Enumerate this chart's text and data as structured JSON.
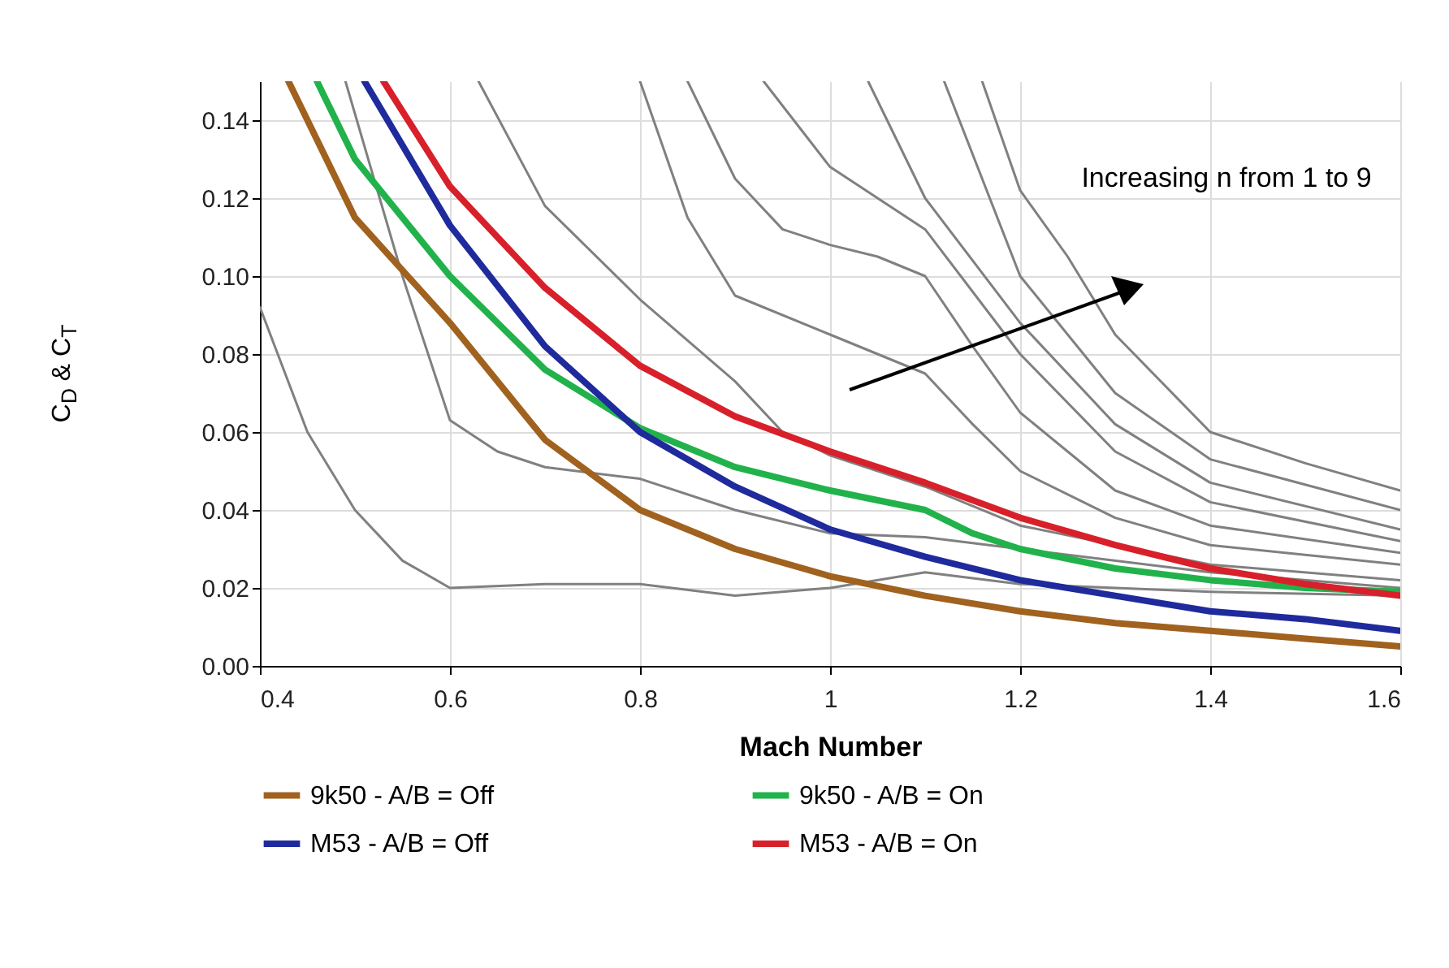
{
  "chart_data": {
    "type": "line",
    "xlabel": "Mach Number",
    "ylabel": "C$_{D}$ & C$_{T}$",
    "xlim": [
      0.4,
      1.6
    ],
    "xticks": [
      0.4,
      0.6,
      0.8,
      1,
      1.2,
      1.4,
      1.6
    ],
    "ylim": [
      0,
      0.15
    ],
    "yticks": [
      {
        "value": 0,
        "label": "0.00"
      },
      {
        "value": 0.02,
        "label": "0.02"
      },
      {
        "value": 0.04,
        "label": "0.04"
      },
      {
        "value": 0.06,
        "label": "0.06"
      },
      {
        "value": 0.08,
        "label": "0.08"
      },
      {
        "value": 0.1,
        "label": "0.10"
      },
      {
        "value": 0.12,
        "label": "0.12"
      },
      {
        "value": 0.14,
        "label": "0.14"
      }
    ],
    "grid": true,
    "legend": "bottom",
    "annotations": [
      "Increasing n from 1 to 9"
    ],
    "series": [
      {
        "color": "#808080",
        "x": [
          0.4,
          0.45,
          0.5,
          0.55,
          0.6,
          0.7,
          0.8,
          0.9,
          1.0,
          1.1,
          1.2,
          1.4,
          1.6
        ],
        "values": [
          0.092,
          0.06,
          0.04,
          0.027,
          0.02,
          0.021,
          0.021,
          0.018,
          0.02,
          0.024,
          0.021,
          0.019,
          0.018
        ]
      },
      {
        "color": "#808080",
        "x": [
          0.49,
          0.55,
          0.6,
          0.65,
          0.7,
          0.8,
          0.9,
          1.0,
          1.1,
          1.2,
          1.4,
          1.6
        ],
        "values": [
          0.15,
          0.1,
          0.063,
          0.055,
          0.051,
          0.048,
          0.04,
          0.034,
          0.033,
          0.03,
          0.024,
          0.02
        ]
      },
      {
        "color": "#808080",
        "x": [
          0.63,
          0.7,
          0.8,
          0.9,
          0.95,
          1.0,
          1.1,
          1.2,
          1.4,
          1.6
        ],
        "values": [
          0.15,
          0.118,
          0.094,
          0.073,
          0.06,
          0.054,
          0.046,
          0.036,
          0.026,
          0.022
        ]
      },
      {
        "color": "#808080",
        "x": [
          0.8,
          0.85,
          0.9,
          1.0,
          1.05,
          1.1,
          1.15,
          1.2,
          1.3,
          1.4,
          1.6
        ],
        "values": [
          0.15,
          0.115,
          0.095,
          0.085,
          0.08,
          0.075,
          0.062,
          0.05,
          0.038,
          0.031,
          0.026
        ]
      },
      {
        "color": "#808080",
        "x": [
          0.85,
          0.9,
          0.95,
          1.0,
          1.05,
          1.1,
          1.15,
          1.2,
          1.3,
          1.4,
          1.6
        ],
        "values": [
          0.15,
          0.125,
          0.112,
          0.108,
          0.105,
          0.1,
          0.082,
          0.065,
          0.045,
          0.036,
          0.029
        ]
      },
      {
        "color": "#808080",
        "x": [
          0.93,
          1.0,
          1.05,
          1.1,
          1.2,
          1.3,
          1.4,
          1.6
        ],
        "values": [
          0.15,
          0.128,
          0.12,
          0.112,
          0.08,
          0.055,
          0.042,
          0.032
        ]
      },
      {
        "color": "#808080",
        "x": [
          1.04,
          1.1,
          1.2,
          1.3,
          1.4,
          1.6
        ],
        "values": [
          0.15,
          0.12,
          0.088,
          0.062,
          0.047,
          0.035
        ]
      },
      {
        "color": "#808080",
        "x": [
          1.12,
          1.2,
          1.3,
          1.4,
          1.6
        ],
        "values": [
          0.15,
          0.1,
          0.07,
          0.053,
          0.04
        ]
      },
      {
        "color": "#808080",
        "x": [
          1.16,
          1.2,
          1.25,
          1.3,
          1.4,
          1.5,
          1.6
        ],
        "values": [
          0.15,
          0.122,
          0.105,
          0.085,
          0.06,
          0.052,
          0.045
        ]
      },
      {
        "name": "9k50 - A/B = Off",
        "color": "#a0621e",
        "x": [
          0.43,
          0.5,
          0.6,
          0.7,
          0.8,
          0.9,
          1.0,
          1.1,
          1.2,
          1.3,
          1.4,
          1.5,
          1.6
        ],
        "values": [
          0.15,
          0.115,
          0.088,
          0.058,
          0.04,
          0.03,
          0.023,
          0.018,
          0.014,
          0.011,
          0.009,
          0.007,
          0.005
        ]
      },
      {
        "name": "9k50 - A/B = On",
        "color": "#22b24c",
        "x": [
          0.46,
          0.5,
          0.6,
          0.7,
          0.8,
          0.9,
          1.0,
          1.1,
          1.15,
          1.2,
          1.3,
          1.4,
          1.5,
          1.6
        ],
        "values": [
          0.15,
          0.13,
          0.1,
          0.076,
          0.061,
          0.051,
          0.045,
          0.04,
          0.034,
          0.03,
          0.025,
          0.022,
          0.02,
          0.019
        ]
      },
      {
        "name": "M53 - A/B = Off",
        "color": "#1f2a9c",
        "x": [
          0.51,
          0.6,
          0.7,
          0.8,
          0.9,
          1.0,
          1.1,
          1.2,
          1.3,
          1.4,
          1.5,
          1.6
        ],
        "values": [
          0.15,
          0.113,
          0.082,
          0.06,
          0.046,
          0.035,
          0.028,
          0.022,
          0.018,
          0.014,
          0.012,
          0.009
        ]
      },
      {
        "name": "M53 - A/B = On",
        "color": "#d8202a",
        "x": [
          0.53,
          0.6,
          0.7,
          0.8,
          0.9,
          1.0,
          1.1,
          1.2,
          1.3,
          1.4,
          1.5,
          1.6
        ],
        "values": [
          0.15,
          0.123,
          0.097,
          0.077,
          0.064,
          0.055,
          0.047,
          0.038,
          0.031,
          0.025,
          0.021,
          0.018
        ]
      }
    ]
  }
}
